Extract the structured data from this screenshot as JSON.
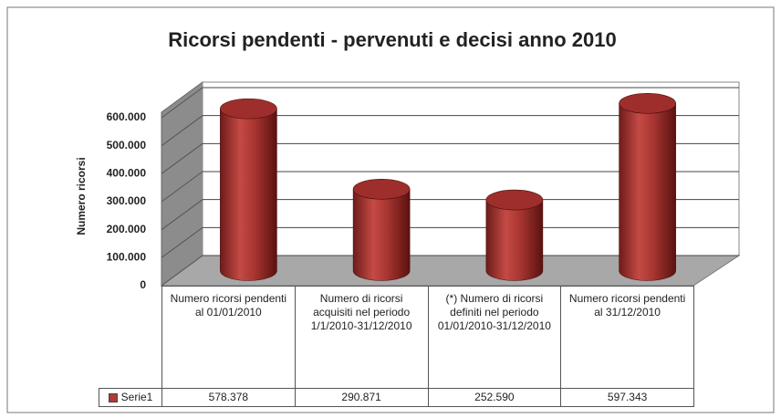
{
  "chart_data": {
    "type": "bar3d",
    "title": "Ricorsi pendenti - pervenuti e decisi anno 2010",
    "y_label": "Numero ricorsi",
    "categories": [
      "Numero ricorsi pendenti al 01/01/2010",
      "Numero di ricorsi acquisiti nel periodo 1/1/2010-31/12/2010",
      "(*) Numero di ricorsi definiti nel periodo 01/01/2010-31/12/2010",
      "Numero ricorsi pendenti al 31/12/2010"
    ],
    "series": [
      {
        "name": "Serie1",
        "color": "#b03a36",
        "values": [
          578378,
          290871,
          252590,
          597343
        ],
        "value_labels": [
          "578.378",
          "290.871",
          "252.590",
          "597.343"
        ]
      }
    ],
    "ylim": [
      0,
      600000
    ],
    "yticks": [
      0,
      {
        "value": 100000,
        "label": "100.000"
      },
      {
        "value": 200000,
        "label": "200.000"
      },
      {
        "value": 300000,
        "label": "300.000"
      },
      {
        "value": 400000,
        "label": "400.000"
      },
      {
        "value": 500000,
        "label": "500.000"
      },
      {
        "value": 600000,
        "label": "600.000"
      }
    ],
    "grid": true
  }
}
